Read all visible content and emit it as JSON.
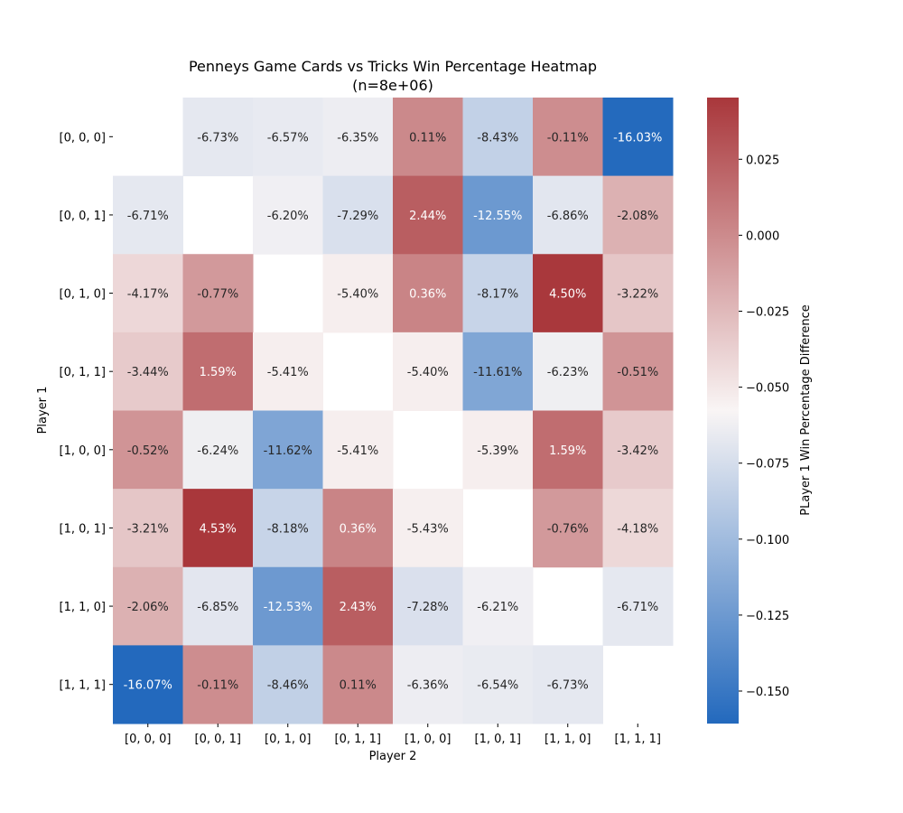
{
  "chart_data": {
    "type": "heatmap",
    "title": "Penneys Game Cards vs Tricks Win Percentage Heatmap",
    "subtitle": "(n=8e+06)",
    "xlabel": "Player 2",
    "ylabel": "Player 1",
    "categories": [
      "[0, 0, 0]",
      "[0, 0, 1]",
      "[0, 1, 0]",
      "[0, 1, 1]",
      "[1, 0, 0]",
      "[1, 0, 1]",
      "[1, 1, 0]",
      "[1, 1, 1]"
    ],
    "values": [
      [
        null,
        -0.0673,
        -0.0657,
        -0.0635,
        0.0011,
        -0.0843,
        -0.0011,
        -0.1603
      ],
      [
        -0.0671,
        null,
        -0.062,
        -0.0729,
        0.0244,
        -0.1255,
        -0.0686,
        -0.0208
      ],
      [
        -0.0417,
        -0.0077,
        null,
        -0.054,
        0.0036,
        -0.0817,
        0.045,
        -0.0322
      ],
      [
        -0.0344,
        0.0159,
        -0.0541,
        null,
        -0.054,
        -0.1161,
        -0.0623,
        -0.0051
      ],
      [
        -0.0052,
        -0.0624,
        -0.1162,
        -0.0541,
        null,
        -0.0539,
        0.0159,
        -0.0342
      ],
      [
        -0.0321,
        0.0453,
        -0.0818,
        0.0036,
        -0.0543,
        null,
        -0.0076,
        -0.0418
      ],
      [
        -0.0206,
        -0.0685,
        -0.1253,
        0.0243,
        -0.0728,
        -0.0621,
        null,
        -0.0671
      ],
      [
        -0.1607,
        -0.0011,
        -0.0846,
        0.0011,
        -0.0636,
        -0.0654,
        -0.0673,
        null
      ]
    ],
    "labels": [
      [
        "",
        "-6.73%",
        "-6.57%",
        "-6.35%",
        "0.11%",
        "-8.43%",
        "-0.11%",
        "-16.03%"
      ],
      [
        "-6.71%",
        "",
        "-6.20%",
        "-7.29%",
        "2.44%",
        "-12.55%",
        "-6.86%",
        "-2.08%"
      ],
      [
        "-4.17%",
        "-0.77%",
        "",
        "-5.40%",
        "0.36%",
        "-8.17%",
        "4.50%",
        "-3.22%"
      ],
      [
        "-3.44%",
        "1.59%",
        "-5.41%",
        "",
        "-5.40%",
        "-11.61%",
        "-6.23%",
        "-0.51%"
      ],
      [
        "-0.52%",
        "-6.24%",
        "-11.62%",
        "-5.41%",
        "",
        "-5.39%",
        "1.59%",
        "-3.42%"
      ],
      [
        "-3.21%",
        "4.53%",
        "-8.18%",
        "0.36%",
        "-5.43%",
        "",
        "-0.76%",
        "-4.18%"
      ],
      [
        "-2.06%",
        "-6.85%",
        "-12.53%",
        "2.43%",
        "-7.28%",
        "-6.21%",
        "",
        "-6.71%"
      ],
      [
        "-16.07%",
        "-0.11%",
        "-8.46%",
        "0.11%",
        "-6.36%",
        "-6.54%",
        "-6.73%",
        ""
      ]
    ],
    "colorbar": {
      "label": "PLayer 1 Win Percentage Difference",
      "vmin": -0.1607,
      "vmax": 0.0453,
      "center": -0.0577,
      "ticks": [
        0.025,
        0.0,
        -0.025,
        -0.05,
        -0.075,
        -0.1,
        -0.125,
        -0.15
      ],
      "tick_labels": [
        "0.025",
        "0.000",
        "−0.025",
        "−0.050",
        "−0.075",
        "−0.100",
        "−0.125",
        "−0.150"
      ],
      "colors": {
        "low": "#2369bd",
        "mid": "#f9f5f5",
        "high": "#a9373b"
      }
    },
    "grid": false,
    "legend": "colorbar-right"
  }
}
